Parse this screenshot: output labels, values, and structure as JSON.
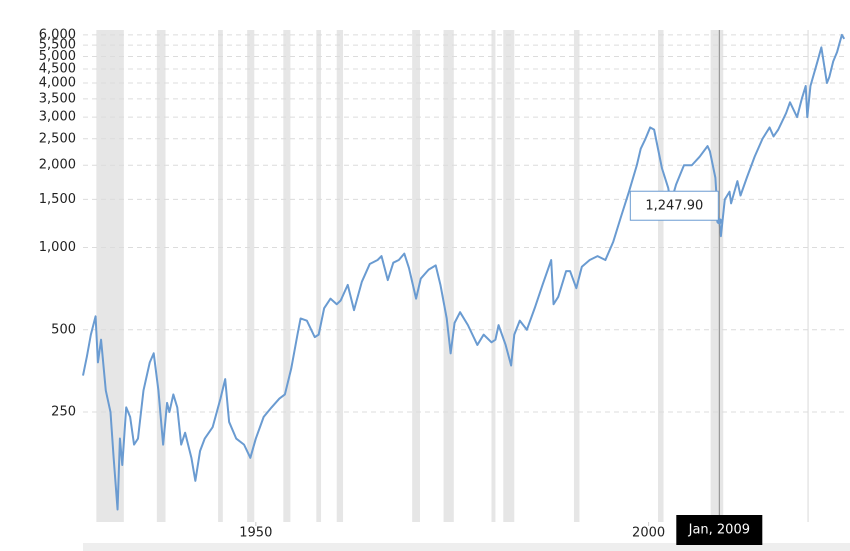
{
  "chart_data": {
    "type": "line",
    "log_scale": true,
    "grid": true,
    "x": [
      1928.0,
      1928.5,
      1929.0,
      1929.6,
      1929.9,
      1930.3,
      1930.9,
      1931.5,
      1931.9,
      1932.4,
      1932.7,
      1933.0,
      1933.5,
      1934.0,
      1934.5,
      1935.0,
      1935.7,
      1936.5,
      1937.0,
      1937.6,
      1938.2,
      1938.7,
      1939.0,
      1939.5,
      1940.0,
      1940.5,
      1941.0,
      1941.8,
      1942.3,
      1942.9,
      1943.5,
      1944.5,
      1945.5,
      1946.1,
      1946.6,
      1947.5,
      1948.5,
      1949.3,
      1950.0,
      1951.0,
      1952.0,
      1953.0,
      1953.7,
      1954.5,
      1955.3,
      1955.7,
      1956.5,
      1957.5,
      1958.0,
      1958.7,
      1959.5,
      1960.3,
      1960.8,
      1961.7,
      1962.5,
      1963.5,
      1964.5,
      1965.5,
      1966.0,
      1966.8,
      1967.5,
      1968.2,
      1968.9,
      1969.5,
      1970.4,
      1971.0,
      1972.0,
      1972.9,
      1973.5,
      1974.3,
      1974.8,
      1975.3,
      1976.0,
      1977.0,
      1978.2,
      1979.0,
      1980.0,
      1980.5,
      1980.9,
      1981.8,
      1982.5,
      1982.9,
      1983.6,
      1984.5,
      1985.5,
      1986.5,
      1987.6,
      1987.9,
      1988.5,
      1989.5,
      1990.0,
      1990.8,
      1991.5,
      1992.5,
      1993.5,
      1994.5,
      1995.5,
      1996.5,
      1997.5,
      1998.5,
      1999.0,
      1999.6,
      2000.2,
      2000.7,
      2001.7,
      2002.5,
      2002.8,
      2003.5,
      2004.5,
      2005.5,
      2006.5,
      2007.5,
      2007.8,
      2008.5,
      2008.8,
      2009.0,
      2009.2,
      2009.7,
      2010.3,
      2010.5,
      2011.3,
      2011.7,
      2012.5,
      2013.5,
      2014.5,
      2015.4,
      2015.9,
      2016.5,
      2017.5,
      2018.0,
      2018.9,
      2019.5,
      2020.0,
      2020.2,
      2020.6,
      2021.5,
      2021.99,
      2022.7,
      2023.0,
      2023.5,
      2024.0,
      2024.6,
      2024.9
    ],
    "series": [
      {
        "color": "#6a9bd1",
        "values": [
          340,
          400,
          480,
          560,
          380,
          460,
          300,
          250,
          170,
          110,
          200,
          160,
          260,
          240,
          190,
          200,
          300,
          380,
          410,
          300,
          190,
          270,
          250,
          290,
          260,
          190,
          210,
          170,
          140,
          180,
          200,
          220,
          280,
          330,
          230,
          200,
          190,
          170,
          200,
          240,
          260,
          280,
          290,
          360,
          480,
          550,
          540,
          470,
          480,
          600,
          650,
          620,
          640,
          730,
          590,
          750,
          870,
          900,
          930,
          760,
          880,
          900,
          950,
          840,
          650,
          770,
          830,
          860,
          730,
          550,
          410,
          530,
          580,
          520,
          440,
          480,
          450,
          460,
          520,
          440,
          370,
          480,
          540,
          500,
          600,
          730,
          900,
          620,
          660,
          820,
          820,
          710,
          850,
          900,
          930,
          900,
          1050,
          1300,
          1600,
          2000,
          2300,
          2500,
          2750,
          2700,
          1950,
          1650,
          1450,
          1700,
          2000,
          2000,
          2150,
          2350,
          2250,
          1800,
          1300,
          1247.9,
          1100,
          1500,
          1600,
          1450,
          1750,
          1550,
          1800,
          2150,
          2500,
          2750,
          2550,
          2700,
          3100,
          3400,
          3000,
          3500,
          3900,
          3000,
          3900,
          4800,
          5400,
          4000,
          4200,
          4800,
          5200,
          6000,
          5800
        ]
      }
    ],
    "recessions": [
      [
        1929.7,
        1933.2
      ],
      [
        1937.4,
        1938.5
      ],
      [
        1945.2,
        1945.8
      ],
      [
        1948.9,
        1949.8
      ],
      [
        1953.5,
        1954.4
      ],
      [
        1957.7,
        1958.3
      ],
      [
        1960.3,
        1961.1
      ],
      [
        1969.9,
        1970.9
      ],
      [
        1973.9,
        1975.2
      ],
      [
        1980.0,
        1980.5
      ],
      [
        1981.5,
        1982.9
      ],
      [
        1990.5,
        1991.2
      ],
      [
        2001.2,
        2001.9
      ],
      [
        2007.9,
        2009.5
      ],
      [
        2020.2,
        2020.4
      ]
    ],
    "xlim": [
      1928,
      2025
    ],
    "xticks": [
      1950,
      2000
    ],
    "ylim": [
      99,
      6250
    ],
    "yticks": [
      250,
      500,
      {
        "value": 1000,
        "label": "1,000"
      },
      {
        "value": 1500,
        "label": "1,500"
      },
      {
        "value": 2000,
        "label": "2,000"
      },
      {
        "value": 2500,
        "label": "2,500"
      },
      {
        "value": 3000,
        "label": "3,000"
      },
      {
        "value": 3500,
        "label": "3,500"
      },
      {
        "value": 4000,
        "label": "4,000"
      },
      {
        "value": 4500,
        "label": "4,500"
      },
      {
        "value": 5000,
        "label": "5,000"
      },
      {
        "value": 5500,
        "label": "5,500"
      },
      {
        "value": 6000,
        "label": "6,000"
      }
    ],
    "tooltip": {
      "x": 2009.0,
      "x_label": "Jan, 2009",
      "value": 1247.9,
      "value_label": "1,247.90"
    }
  }
}
